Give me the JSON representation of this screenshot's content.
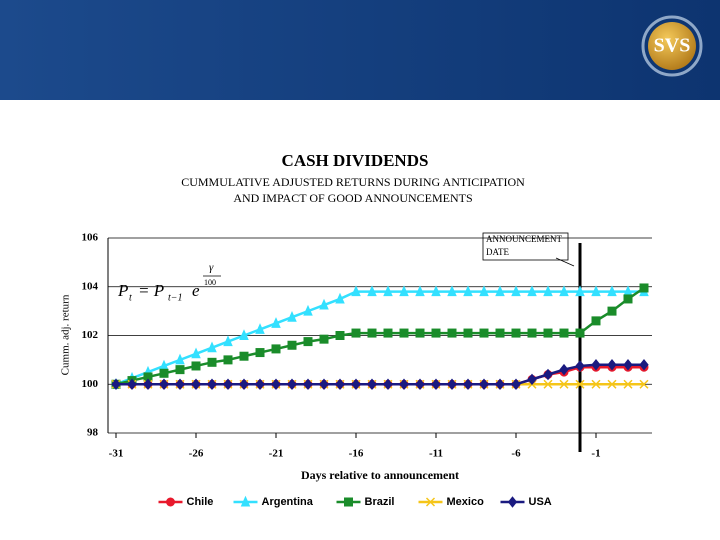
{
  "logo": "SVS",
  "chart_data": {
    "type": "line",
    "title": "CASH DIVIDENDS",
    "subtitle": [
      "CUMMULATIVE ADJUSTED RETURNS DURING ANTICIPATION",
      "AND IMPACT OF GOOD ANNOUNCEMENTS"
    ],
    "xlabel": "Days relative to announcement",
    "ylabel": "Cumm. adj. return",
    "x": [
      -31,
      -30,
      -29,
      -28,
      -27,
      -26,
      -25,
      -24,
      -23,
      -22,
      -21,
      -20,
      -19,
      -18,
      -17,
      -16,
      -15,
      -14,
      -13,
      -12,
      -11,
      -10,
      -9,
      -8,
      -7,
      -6,
      -5,
      -4,
      -3,
      -2,
      -1,
      0,
      1,
      2
    ],
    "xlim": [
      -31.5,
      2.5
    ],
    "xticks": [
      -31,
      -26,
      -21,
      -16,
      -11,
      -6,
      -1
    ],
    "ylim": [
      98,
      106
    ],
    "yticks": [
      98,
      100,
      102,
      104,
      106
    ],
    "grid": true,
    "legend": "bottom",
    "announcement": {
      "day": -2,
      "label": [
        "ANNOUNCEMENT",
        "DATE"
      ]
    },
    "formula": {
      "base": "P",
      "sub": "t",
      "eq": "= P",
      "sub2": "t−1",
      "exp_base": "e",
      "exp_num": "γ",
      "exp_den": "100"
    },
    "series": [
      {
        "name": "Chile",
        "color": "#e8192c",
        "marker": "circle",
        "values": [
          100,
          100,
          100,
          100,
          100,
          100,
          100,
          100,
          100,
          100,
          100,
          100,
          100,
          100,
          100,
          100,
          100,
          100,
          100,
          100,
          100,
          100,
          100,
          100,
          100,
          100,
          100.2,
          100.4,
          100.5,
          100.7,
          100.7,
          100.7,
          100.7,
          100.7
        ]
      },
      {
        "name": "Argentina",
        "color": "#33e0ff",
        "marker": "triangle",
        "values": [
          100,
          100.25,
          100.5,
          100.75,
          101,
          101.25,
          101.5,
          101.75,
          102,
          102.25,
          102.5,
          102.75,
          103,
          103.25,
          103.5,
          103.8,
          103.8,
          103.8,
          103.8,
          103.8,
          103.8,
          103.8,
          103.8,
          103.8,
          103.8,
          103.8,
          103.8,
          103.8,
          103.8,
          103.8,
          103.8,
          103.8,
          103.8,
          103.8
        ]
      },
      {
        "name": "Brazil",
        "color": "#1a8c2a",
        "marker": "square",
        "values": [
          100,
          100.15,
          100.3,
          100.45,
          100.6,
          100.75,
          100.9,
          101,
          101.15,
          101.3,
          101.45,
          101.6,
          101.75,
          101.85,
          102,
          102.1,
          102.1,
          102.1,
          102.1,
          102.1,
          102.1,
          102.1,
          102.1,
          102.1,
          102.1,
          102.1,
          102.1,
          102.1,
          102.1,
          102.1,
          102.6,
          103,
          103.5,
          103.95
        ]
      },
      {
        "name": "Mexico",
        "color": "#f5c518",
        "marker": "x",
        "values": [
          100,
          100,
          100,
          100,
          100,
          100,
          100,
          100,
          100,
          100,
          100,
          100,
          100,
          100,
          100,
          100,
          100,
          100,
          100,
          100,
          100,
          100,
          100,
          100,
          100,
          100,
          100,
          100,
          100,
          100,
          100,
          100,
          100,
          100
        ]
      },
      {
        "name": "USA",
        "color": "#1a1a80",
        "marker": "diamond",
        "values": [
          100,
          100,
          100,
          100,
          100,
          100,
          100,
          100,
          100,
          100,
          100,
          100,
          100,
          100,
          100,
          100,
          100,
          100,
          100,
          100,
          100,
          100,
          100,
          100,
          100,
          100,
          100.2,
          100.4,
          100.6,
          100.75,
          100.8,
          100.8,
          100.8,
          100.8
        ]
      }
    ]
  }
}
